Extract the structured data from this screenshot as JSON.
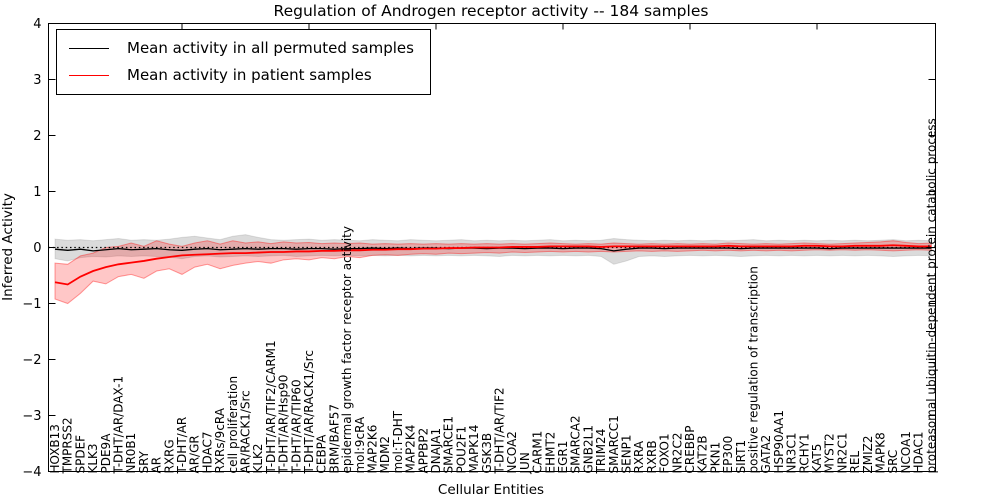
{
  "title": "Regulation of Androgen receptor activity -- 184 samples",
  "legend": {
    "items": [
      {
        "label": "Mean activity in all permuted samples",
        "color": "#000000"
      },
      {
        "label": "Mean activity in patient samples",
        "color": "#ff0000"
      }
    ]
  },
  "chart_data": {
    "type": "line",
    "title": "Regulation of Androgen receptor activity -- 184 samples",
    "xlabel": "Cellular Entities",
    "ylabel": "Inferred Activity",
    "ylim": [
      -4,
      4
    ],
    "yticks": [
      4,
      3,
      2,
      1,
      0,
      -1,
      -2,
      -3,
      -4
    ],
    "x_major_ticks": [
      10,
      20,
      30,
      40,
      50,
      60
    ],
    "grid": false,
    "legend_position": "upper left",
    "zero_line": true,
    "categories": [
      "HOXB13",
      "TMPRSS2",
      "SPDEF",
      "KLK3",
      "PDE9A",
      "T-DHT/AR/DAX-1",
      "NR0B1",
      "SRY",
      "AR",
      "RXRG",
      "T-DHT/AR",
      "AR/GR",
      "HDAC7",
      "RXRs/9cRA",
      "cell proliferation",
      "AR/RACK1/Src",
      "KLK2",
      "T-DHT/AR/TIF2/CARM1",
      "T-DHT/AR/Hsp90",
      "T-DHT/AR/TIP60",
      "T-DHT/AR/RACK1/Src",
      "CEBPA",
      "BRM/BAF57",
      "epidermal growth factor receptor activity",
      "mol:9cRA",
      "MAP2K6",
      "MDM2",
      "mol:T-DHT",
      "MAP2K4",
      "APPBP2",
      "DNAJA1",
      "SMARCE1",
      "POU2F1",
      "MAPK14",
      "GSK3B",
      "T-DHT/AR/TIF2",
      "NCOA2",
      "JUN",
      "CARM1",
      "EHMT2",
      "EGR1",
      "SMARCA2",
      "GNB2L1",
      "TRIM24",
      "SMARCC1",
      "SENP1",
      "RXRA",
      "RXRB",
      "FOXO1",
      "NR2C2",
      "CREBBP",
      "KAT2B",
      "PKN1",
      "EP300",
      "SIRT1",
      "positive regulation of transcription",
      "GATA2",
      "HSP90AA1",
      "NR3C1",
      "RCHY1",
      "KAT5",
      "MYST2",
      "NR2C1",
      "REL",
      "ZMIZ2",
      "MAPK8",
      "SRC",
      "NCOA1",
      "HDAC1",
      "proteasomal ubiquitin-dependent protein catabolic process"
    ],
    "series": [
      {
        "name": "Mean activity in all permuted samples",
        "color": "#000000",
        "values": [
          -0.03,
          -0.05,
          -0.03,
          -0.06,
          -0.04,
          -0.02,
          -0.04,
          -0.03,
          -0.02,
          -0.04,
          -0.05,
          -0.03,
          -0.02,
          -0.04,
          -0.03,
          -0.02,
          -0.03,
          -0.02,
          -0.02,
          -0.03,
          -0.02,
          -0.02,
          -0.03,
          -0.02,
          -0.02,
          -0.01,
          -0.02,
          -0.01,
          -0.02,
          -0.01,
          -0.01,
          -0.02,
          -0.01,
          -0.01,
          -0.02,
          -0.01,
          -0.01,
          -0.02,
          -0.01,
          -0.01,
          -0.02,
          -0.01,
          -0.01,
          -0.02,
          -0.06,
          -0.03,
          -0.01,
          -0.01,
          -0.02,
          -0.01,
          -0.01,
          -0.01,
          -0.01,
          -0.01,
          -0.02,
          -0.01,
          -0.01,
          -0.01,
          -0.01,
          -0.01,
          -0.01,
          -0.02,
          -0.01,
          -0.01,
          -0.01,
          -0.01,
          -0.01,
          -0.01,
          -0.01,
          -0.01
        ]
      },
      {
        "name": "Mean activity in patient samples",
        "color": "#ff0000",
        "values": [
          -0.62,
          -0.66,
          -0.52,
          -0.42,
          -0.35,
          -0.3,
          -0.27,
          -0.24,
          -0.2,
          -0.17,
          -0.14,
          -0.13,
          -0.12,
          -0.11,
          -0.1,
          -0.1,
          -0.09,
          -0.08,
          -0.08,
          -0.07,
          -0.07,
          -0.06,
          -0.06,
          -0.05,
          -0.05,
          -0.04,
          -0.04,
          -0.03,
          -0.03,
          -0.02,
          -0.02,
          -0.01,
          -0.01,
          0.0,
          0.0,
          0.0,
          0.01,
          0.01,
          0.01,
          0.02,
          0.02,
          0.02,
          0.02,
          0.01,
          0.02,
          0.02,
          0.02,
          0.02,
          0.02,
          0.02,
          0.02,
          0.02,
          0.02,
          0.03,
          0.02,
          0.02,
          0.02,
          0.02,
          0.02,
          0.03,
          0.03,
          0.02,
          0.02,
          0.03,
          0.03,
          0.03,
          0.04,
          0.03,
          0.02,
          0.02
        ]
      }
    ],
    "bands": [
      {
        "name": "permuted samples range",
        "fill": "rgba(0,0,0,0.14)",
        "edge": "rgba(0,0,0,0.10)",
        "high": [
          0.15,
          0.13,
          0.14,
          0.12,
          0.14,
          0.16,
          0.13,
          0.14,
          0.13,
          0.15,
          0.18,
          0.2,
          0.17,
          0.14,
          0.2,
          0.23,
          0.18,
          0.14,
          0.13,
          0.14,
          0.15,
          0.13,
          0.14,
          0.13,
          0.12,
          0.14,
          0.13,
          0.12,
          0.14,
          0.13,
          0.12,
          0.13,
          0.14,
          0.12,
          0.13,
          0.12,
          0.13,
          0.12,
          0.13,
          0.14,
          0.12,
          0.13,
          0.12,
          0.13,
          0.16,
          0.14,
          0.13,
          0.12,
          0.13,
          0.12,
          0.13,
          0.12,
          0.13,
          0.12,
          0.13,
          0.14,
          0.12,
          0.13,
          0.12,
          0.13,
          0.12,
          0.13,
          0.12,
          0.13,
          0.12,
          0.13,
          0.14,
          0.12,
          0.13,
          0.12
        ],
        "low": [
          -0.2,
          -0.24,
          -0.18,
          -0.16,
          -0.17,
          -0.15,
          -0.16,
          -0.15,
          -0.16,
          -0.17,
          -0.2,
          -0.16,
          -0.15,
          -0.17,
          -0.16,
          -0.15,
          -0.16,
          -0.15,
          -0.14,
          -0.16,
          -0.15,
          -0.14,
          -0.15,
          -0.14,
          -0.15,
          -0.14,
          -0.15,
          -0.14,
          -0.15,
          -0.14,
          -0.15,
          -0.14,
          -0.15,
          -0.14,
          -0.15,
          -0.16,
          -0.14,
          -0.15,
          -0.14,
          -0.15,
          -0.14,
          -0.15,
          -0.14,
          -0.16,
          -0.3,
          -0.24,
          -0.16,
          -0.15,
          -0.16,
          -0.15,
          -0.14,
          -0.15,
          -0.14,
          -0.15,
          -0.16,
          -0.15,
          -0.14,
          -0.15,
          -0.14,
          -0.15,
          -0.14,
          -0.15,
          -0.14,
          -0.15,
          -0.14,
          -0.15,
          -0.16,
          -0.15,
          -0.14,
          -0.15
        ]
      },
      {
        "name": "patient samples range",
        "fill": "rgba(255,0,0,0.22)",
        "edge": "rgba(255,0,0,0.38)",
        "high": [
          -0.28,
          -0.3,
          -0.15,
          -0.1,
          0.0,
          0.02,
          0.08,
          0.02,
          0.12,
          0.06,
          0.02,
          0.08,
          0.12,
          0.06,
          0.12,
          0.08,
          0.1,
          0.07,
          0.1,
          0.08,
          0.09,
          0.07,
          0.08,
          0.07,
          0.08,
          0.06,
          0.07,
          0.06,
          0.07,
          0.06,
          0.07,
          0.06,
          0.07,
          0.06,
          0.07,
          0.06,
          0.07,
          0.06,
          0.07,
          0.08,
          0.07,
          0.06,
          0.07,
          0.06,
          0.08,
          0.07,
          0.06,
          0.07,
          0.06,
          0.07,
          0.06,
          0.07,
          0.06,
          0.08,
          0.07,
          0.06,
          0.07,
          0.06,
          0.07,
          0.08,
          0.07,
          0.06,
          0.07,
          0.08,
          0.09,
          0.1,
          0.12,
          0.09,
          0.07,
          0.08
        ],
        "low": [
          -0.92,
          -1.0,
          -0.82,
          -0.6,
          -0.65,
          -0.52,
          -0.48,
          -0.55,
          -0.42,
          -0.38,
          -0.48,
          -0.35,
          -0.3,
          -0.38,
          -0.32,
          -0.28,
          -0.25,
          -0.28,
          -0.22,
          -0.2,
          -0.22,
          -0.18,
          -0.2,
          -0.16,
          -0.18,
          -0.14,
          -0.13,
          -0.14,
          -0.12,
          -0.11,
          -0.12,
          -0.1,
          -0.11,
          -0.1,
          -0.09,
          -0.1,
          -0.08,
          -0.09,
          -0.08,
          -0.07,
          -0.08,
          -0.07,
          -0.08,
          -0.07,
          -0.08,
          -0.07,
          -0.06,
          -0.07,
          -0.06,
          -0.07,
          -0.06,
          -0.05,
          -0.06,
          -0.05,
          -0.06,
          -0.05,
          -0.06,
          -0.05,
          -0.06,
          -0.05,
          -0.04,
          -0.05,
          -0.04,
          -0.05,
          -0.04,
          -0.05,
          -0.06,
          -0.05,
          -0.04,
          -0.05
        ]
      }
    ]
  }
}
